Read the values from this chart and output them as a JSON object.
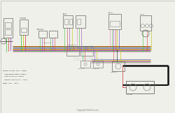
{
  "bg_color": "#f0f0ea",
  "diagram_bg": "#f0f0ea",
  "wire_colors": {
    "pink": "#e080c0",
    "green": "#40c040",
    "purple": "#9040c0",
    "red": "#d04040",
    "yellow": "#c0c000",
    "blue": "#4040c0",
    "black": "#101010",
    "orange": "#e08000",
    "white": "#e0e0e0",
    "gray": "#808080"
  },
  "legend_lines": [
    "WIRING DIAGRAM CODE: LEGEND",
    "        BLK - BLACK",
    "        RED - RED",
    "        GRN - GREEN",
    "WIRING DIAGRAM REV. 1 - 2003"
  ],
  "model_line": "MODEL ZTR - 5023",
  "watermark": "PartsTree",
  "footer": "Copyright PartsTree.com"
}
